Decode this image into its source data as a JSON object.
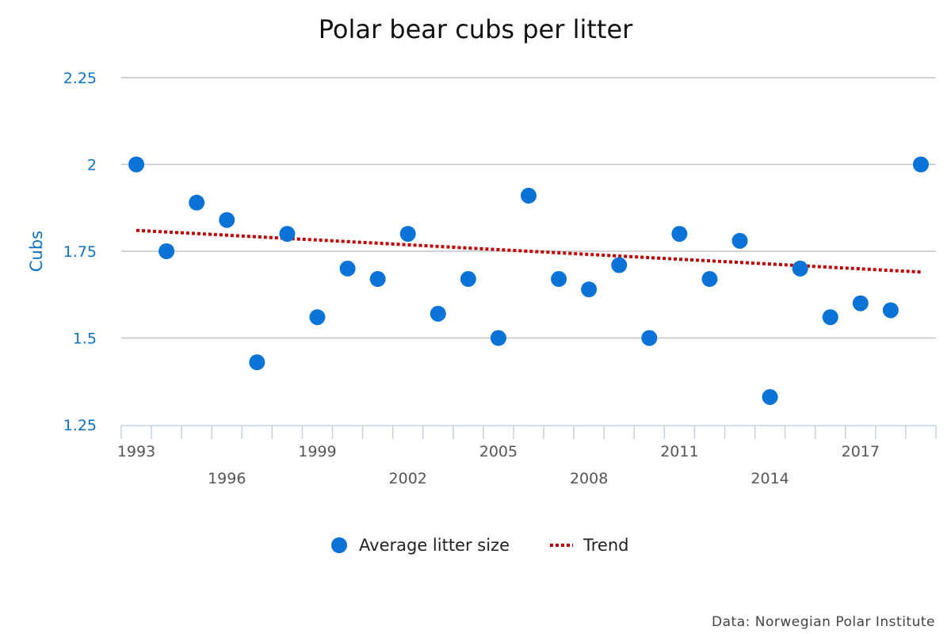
{
  "chart_data": {
    "type": "scatter",
    "title": "Polar bear cubs per litter",
    "xlabel": "",
    "ylabel": "Cubs",
    "ylim": [
      1.25,
      2.25
    ],
    "yticks": [
      "1.25",
      "1.5",
      "1.75",
      "2",
      "2.25"
    ],
    "ytick_values": [
      1.25,
      1.5,
      1.75,
      2,
      2.25
    ],
    "x": [
      1993,
      1994,
      1995,
      1996,
      1997,
      1998,
      1999,
      2000,
      2001,
      2002,
      2003,
      2004,
      2005,
      2006,
      2007,
      2008,
      2009,
      2010,
      2011,
      2012,
      2013,
      2014,
      2015,
      2016,
      2017,
      2018,
      2019
    ],
    "xtick_labels": [
      "1993",
      "1996",
      "1999",
      "2002",
      "2005",
      "2008",
      "2011",
      "2014",
      "2017"
    ],
    "grid": true,
    "legend_position": "bottom-center",
    "series": [
      {
        "name": "Average litter size",
        "type": "scatter",
        "color": "#0b72d6",
        "values": [
          2.0,
          1.75,
          1.89,
          1.84,
          1.43,
          1.8,
          1.56,
          1.7,
          1.67,
          1.8,
          1.57,
          1.67,
          1.5,
          1.91,
          1.67,
          1.64,
          1.71,
          1.5,
          1.8,
          1.67,
          1.78,
          1.33,
          1.7,
          1.56,
          1.6,
          1.58,
          2.0
        ]
      },
      {
        "name": "Trend",
        "type": "line",
        "style": "dotted",
        "color": "#c00000",
        "x": [
          1993,
          2019
        ],
        "values": [
          1.81,
          1.69
        ]
      }
    ],
    "credit": "Data: Norwegian Polar Institute"
  }
}
